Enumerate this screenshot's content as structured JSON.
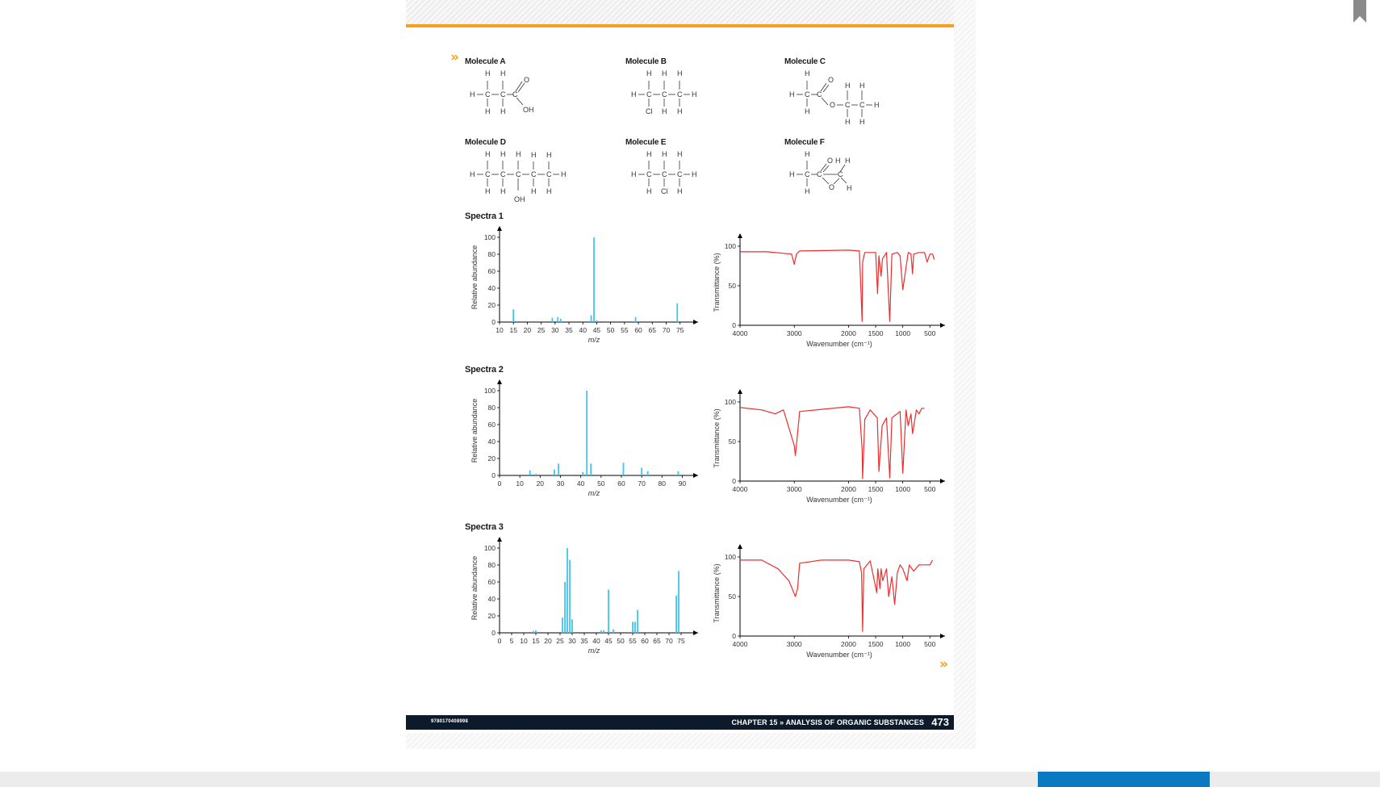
{
  "footer": {
    "isbn": "9780170408998",
    "chapter": "CHAPTER 15 » ANALYSIS OF ORGANIC SUBSTANCES",
    "page_number": "473"
  },
  "icons": {
    "chevron": "»",
    "bookmark": "bookmark-icon"
  },
  "colors": {
    "accent": "#f6a11e",
    "ms_bar": "#3ec6ef",
    "ir_line": "#ee2d2d",
    "footer": "#0c1a2b",
    "scroll_thumb": "#0b79c1"
  },
  "molecules": [
    {
      "name": "Molecule A"
    },
    {
      "name": "Molecule B"
    },
    {
      "name": "Molecule C"
    },
    {
      "name": "Molecule D"
    },
    {
      "name": "Molecule E"
    },
    {
      "name": "Molecule F"
    }
  ],
  "spectra": [
    {
      "title": "Spectra 1"
    },
    {
      "title": "Spectra 2"
    },
    {
      "title": "Spectra 3"
    }
  ],
  "chart_data": [
    {
      "type": "bar",
      "id": "ms1",
      "ylabel": "Relative abundance",
      "xlabel": "m/z",
      "xlim": [
        10,
        78
      ],
      "ylim": [
        0,
        100
      ],
      "yticks": [
        0,
        20,
        40,
        60,
        80,
        100
      ],
      "xticks": [
        10,
        15,
        20,
        25,
        30,
        35,
        40,
        45,
        50,
        55,
        60,
        65,
        70,
        75
      ],
      "x": [
        15,
        29,
        31,
        32,
        43,
        44,
        45,
        59,
        74
      ],
      "values": [
        15,
        5,
        6,
        4,
        8,
        100,
        2,
        6,
        22
      ]
    },
    {
      "type": "line",
      "id": "ir1",
      "ylabel": "Transmittance (%)",
      "xlabel": "Wavenumber (cm⁻¹)",
      "xlim": [
        4000,
        400
      ],
      "ylim": [
        0,
        100
      ],
      "yticks": [
        0,
        50,
        100
      ],
      "xticks": [
        4000,
        3000,
        2000,
        1500,
        1000,
        500
      ],
      "x": [
        4000,
        3500,
        3050,
        3000,
        2960,
        2900,
        2000,
        1800,
        1750,
        1740,
        1700,
        1500,
        1465,
        1440,
        1400,
        1375,
        1300,
        1240,
        1200,
        1100,
        1050,
        1000,
        900,
        850,
        820,
        800,
        700,
        600,
        550,
        500,
        450,
        420
      ],
      "values": [
        93,
        93,
        90,
        77,
        90,
        94,
        95,
        94,
        5,
        80,
        92,
        92,
        40,
        88,
        62,
        84,
        92,
        5,
        90,
        92,
        88,
        45,
        92,
        90,
        65,
        90,
        92,
        92,
        80,
        90,
        90,
        83
      ]
    },
    {
      "type": "bar",
      "id": "ms2",
      "ylabel": "Relative abundance",
      "xlabel": "m/z",
      "xlim": [
        0,
        93
      ],
      "ylim": [
        0,
        100
      ],
      "yticks": [
        0,
        20,
        40,
        60,
        80,
        100
      ],
      "xticks": [
        0,
        10,
        20,
        30,
        40,
        50,
        60,
        70,
        80,
        90
      ],
      "x": [
        15,
        18,
        27,
        29,
        41,
        43,
        45,
        61,
        70,
        73,
        88
      ],
      "values": [
        6,
        2,
        7,
        14,
        4,
        100,
        14,
        15,
        9,
        5,
        5
      ]
    },
    {
      "type": "line",
      "id": "ir2",
      "ylabel": "Transmittance (%)",
      "xlabel": "Wavenumber (cm⁻¹)",
      "xlim": [
        4000,
        400
      ],
      "ylim": [
        0,
        100
      ],
      "yticks": [
        0,
        50,
        100
      ],
      "xticks": [
        4000,
        3000,
        2000,
        1500,
        1000,
        500
      ],
      "x": [
        4000,
        3600,
        3350,
        3200,
        3000,
        2980,
        2900,
        2000,
        1800,
        1750,
        1740,
        1700,
        1600,
        1500,
        1470,
        1440,
        1380,
        1300,
        1240,
        1200,
        1050,
        1000,
        940,
        900,
        850,
        820,
        750,
        700,
        650,
        600
      ],
      "values": [
        93,
        90,
        85,
        90,
        45,
        32,
        88,
        94,
        92,
        40,
        3,
        78,
        90,
        82,
        80,
        12,
        70,
        80,
        4,
        80,
        88,
        10,
        90,
        70,
        85,
        60,
        90,
        85,
        92,
        92
      ]
    },
    {
      "type": "bar",
      "id": "ms3",
      "ylabel": "Relative abundance",
      "xlabel": "m/z",
      "xlim": [
        0,
        78
      ],
      "ylim": [
        0,
        100
      ],
      "yticks": [
        0,
        20,
        40,
        60,
        80,
        100
      ],
      "xticks": [
        0,
        5,
        10,
        15,
        20,
        25,
        30,
        35,
        40,
        45,
        50,
        55,
        60,
        65,
        70,
        75
      ],
      "x": [
        14,
        15,
        26,
        27,
        28,
        29,
        30,
        42,
        43,
        45,
        47,
        55,
        56,
        57,
        73,
        74
      ],
      "values": [
        2,
        3,
        18,
        60,
        100,
        86,
        16,
        3,
        3,
        51,
        4,
        13,
        13,
        27,
        44,
        73
      ]
    },
    {
      "type": "line",
      "id": "ir3",
      "ylabel": "Transmittance (%)",
      "xlabel": "Wavenumber (cm⁻¹)",
      "xlim": [
        4000,
        400
      ],
      "ylim": [
        0,
        100
      ],
      "yticks": [
        0,
        50,
        100
      ],
      "xticks": [
        4000,
        3000,
        2000,
        1500,
        1000,
        500
      ],
      "x": [
        4000,
        3600,
        3300,
        3100,
        2980,
        2940,
        2900,
        2500,
        2000,
        1800,
        1760,
        1740,
        1720,
        1600,
        1480,
        1460,
        1420,
        1400,
        1370,
        1300,
        1260,
        1200,
        1150,
        1100,
        1050,
        1000,
        920,
        880,
        800,
        700,
        600,
        500,
        450
      ],
      "values": [
        96,
        96,
        85,
        70,
        50,
        60,
        92,
        96,
        96,
        94,
        80,
        6,
        85,
        95,
        55,
        85,
        60,
        85,
        70,
        85,
        50,
        75,
        40,
        80,
        90,
        85,
        70,
        90,
        82,
        90,
        90,
        90,
        96
      ]
    }
  ]
}
